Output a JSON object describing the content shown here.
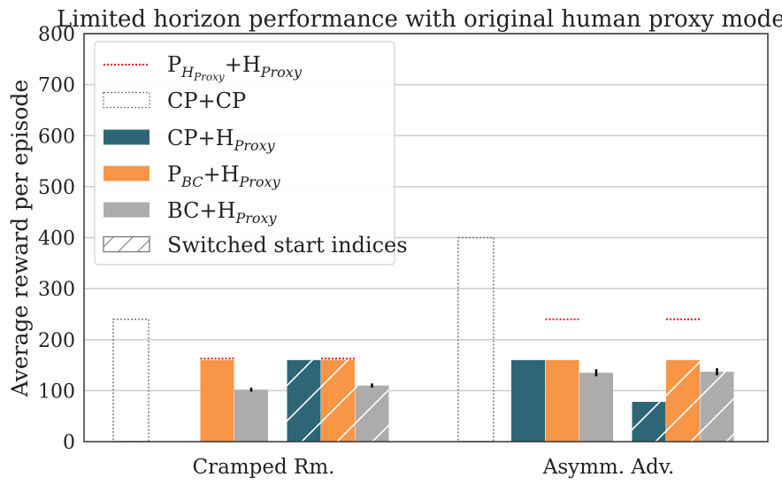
{
  "chart_data": {
    "type": "bar",
    "title": "Limited horizon performance with original human proxy model",
    "ylabel": "Average reward per episode",
    "xlabel": "",
    "ylim": [
      0,
      800
    ],
    "yticks": [
      0,
      100,
      200,
      300,
      400,
      500,
      600,
      700,
      800
    ],
    "grid": "horizontal",
    "legend_position": "top-left",
    "categories": [
      "Cramped Rm.",
      "Asymm. Adv."
    ],
    "legend": [
      {
        "key": "ph",
        "base": "P",
        "base_sub": "H",
        "base_subsub": "Proxy",
        "rest": "+H",
        "rest_sub": "Proxy",
        "style": "dotted-red"
      },
      {
        "key": "cpcp",
        "text": "CP+CP",
        "style": "dotted-gray"
      },
      {
        "key": "cph",
        "base": "CP+H",
        "base_sub": "Proxy",
        "style": "solid-teal"
      },
      {
        "key": "pbc",
        "base": "P",
        "base_sub": "BC",
        "rest": "+H",
        "rest_sub": "Proxy",
        "style": "solid-orange"
      },
      {
        "key": "bch",
        "base": "BC+H",
        "base_sub": "Proxy",
        "style": "solid-gray"
      },
      {
        "key": "switched",
        "text": "Switched start indices",
        "style": "hatched"
      }
    ],
    "colors": {
      "teal": "#2e6677",
      "orange": "#f89546",
      "gray": "#acacac",
      "red": "#e41a1c",
      "outline": "#777777"
    },
    "groups": [
      {
        "category": "Cramped Rm.",
        "cpcp": 240,
        "bars": [
          {
            "series": "CP+H_Proxy",
            "color": "teal",
            "value": 0,
            "hatched": false
          },
          {
            "series": "P_BC+H_Proxy",
            "color": "orange",
            "value": 160,
            "hatched": false
          },
          {
            "series": "BC+H_Proxy",
            "color": "gray",
            "value": 102,
            "error": 4,
            "hatched": false
          },
          {
            "series": "CP+H_Proxy",
            "color": "teal",
            "value": 160,
            "hatched": true
          },
          {
            "series": "P_BC+H_Proxy",
            "color": "orange",
            "value": 160,
            "hatched": true
          },
          {
            "series": "BC+H_Proxy",
            "color": "gray",
            "value": 110,
            "error": 4,
            "hatched": true
          }
        ],
        "p_h_proxy": [
          {
            "bar_index": 1,
            "value": 163
          },
          {
            "bar_index": 4,
            "value": 163
          }
        ]
      },
      {
        "category": "Asymm. Adv.",
        "cpcp": 400,
        "bars": [
          {
            "series": "CP+H_Proxy",
            "color": "teal",
            "value": 160,
            "hatched": false
          },
          {
            "series": "P_BC+H_Proxy",
            "color": "orange",
            "value": 160,
            "hatched": false
          },
          {
            "series": "BC+H_Proxy",
            "color": "gray",
            "value": 135,
            "error": 7,
            "hatched": false
          },
          {
            "series": "CP+H_Proxy",
            "color": "teal",
            "value": 78,
            "hatched": true
          },
          {
            "series": "P_BC+H_Proxy",
            "color": "orange",
            "value": 160,
            "hatched": true
          },
          {
            "series": "BC+H_Proxy",
            "color": "gray",
            "value": 137,
            "error": 7,
            "hatched": true
          }
        ],
        "p_h_proxy": [
          {
            "bar_index": 1,
            "value": 240
          },
          {
            "bar_index": 4,
            "value": 240
          }
        ]
      }
    ]
  }
}
